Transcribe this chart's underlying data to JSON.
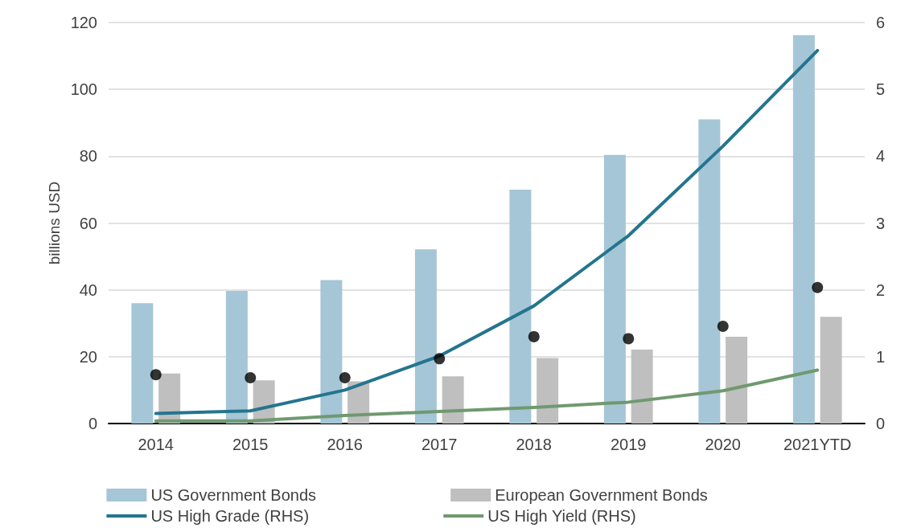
{
  "chart_data": {
    "type": "bar",
    "ylabel": "billions USD",
    "categories": [
      "2014",
      "2015",
      "2016",
      "2017",
      "2018",
      "2019",
      "2020",
      "2021YTD"
    ],
    "series": [
      {
        "name": "US Government Bonds",
        "color": "#a5c6d6",
        "values": [
          36,
          39.7,
          42.9,
          52.1,
          70,
          80.4,
          91,
          116.2
        ]
      },
      {
        "name": "European Government Bonds",
        "color": "#bfbfbf",
        "values": [
          15,
          12.9,
          12.6,
          14.1,
          19.6,
          22.1,
          26,
          31.9
        ]
      },
      {
        "name": "US High Grade (RHS)",
        "type": "line",
        "axis": "y2",
        "color": "#24758f",
        "values": [
          0.15,
          0.19,
          0.5,
          1.01,
          1.76,
          2.81,
          4.15,
          5.58
        ]
      },
      {
        "name": "US High Yield (RHS)",
        "type": "line",
        "axis": "y2",
        "color": "#70996f",
        "values": [
          0.04,
          0.04,
          0.12,
          0.18,
          0.24,
          0.32,
          0.49,
          0.8
        ]
      },
      {
        "type": "scatter",
        "marker": "circle",
        "color": "#000000",
        "values": [
          14.6,
          13.7,
          13.7,
          19.4,
          26,
          25.4,
          29.1,
          40.7
        ]
      }
    ],
    "ylim": [
      0,
      120
    ],
    "yticks": [
      0,
      20,
      40,
      60,
      80,
      100,
      120
    ],
    "y2lim": [
      0,
      6
    ],
    "y2ticks": [
      0,
      1,
      2,
      3,
      4,
      5,
      6
    ],
    "grid": "y",
    "legend": "bottom",
    "marker": "none",
    "line_style": "solid"
  }
}
